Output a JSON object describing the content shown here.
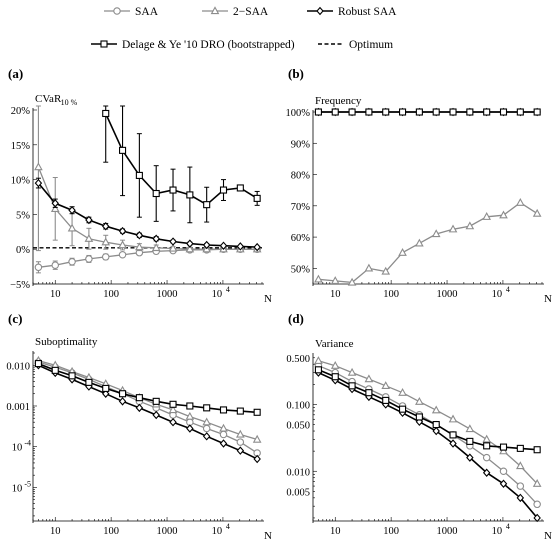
{
  "legend": [
    {
      "name": "SAA",
      "marker": "circle",
      "color": "#8c8c8c"
    },
    {
      "name": "2−SAA",
      "marker": "triangle",
      "color": "#8c8c8c"
    },
    {
      "name": "Robust SAA",
      "marker": "diamond",
      "color": "#000000"
    },
    {
      "name": "Delage & Ye '10 DRO (bootstrapped)",
      "marker": "square",
      "color": "#000000"
    },
    {
      "name": "Optimum",
      "marker": "dashed",
      "color": "#000000"
    }
  ],
  "chart_data": [
    {
      "panel": "(a)",
      "type": "line",
      "ylabel": "CVaR",
      "ylabel_sub": "10 %",
      "xlabel": "N",
      "xscale": "log",
      "xlim": [
        4,
        50000
      ],
      "ylim": [
        -5,
        20
      ],
      "yticks": [
        -5,
        0,
        5,
        10,
        15,
        20
      ],
      "ytick_labels": [
        "−5%",
        "0%",
        "5%",
        "10%",
        "15%",
        "20%"
      ],
      "xticks": [
        10,
        100,
        1000,
        10000
      ],
      "xtick_labels": [
        "10",
        "100",
        "1000",
        "10^4"
      ],
      "x": [
        5,
        10,
        20,
        40,
        80,
        160,
        320,
        640,
        1280,
        2560,
        5120,
        10240,
        20480,
        40960
      ],
      "optimum": 0.2,
      "series": [
        {
          "name": "SAA",
          "values": [
            -2.6,
            -2.3,
            -1.8,
            -1.4,
            -1.1,
            -0.8,
            -0.5,
            -0.3,
            -0.2,
            -0.1,
            -0.1,
            0.0,
            0.0,
            0.0
          ],
          "err": [
            0.8,
            0.6,
            0.5,
            0.5,
            0.4,
            0.3,
            0.3,
            0.2,
            0.2,
            0.2,
            0.1,
            0.1,
            0.1,
            0.1
          ]
        },
        {
          "name": "2−SAA",
          "values": [
            11.8,
            5.8,
            3.0,
            1.5,
            1.0,
            0.6,
            0.3,
            0.2,
            0.1,
            0.0,
            0.0,
            0.0,
            0.0,
            0.0
          ],
          "err": [
            12,
            4.5,
            2.5,
            1.5,
            1.0,
            0.7,
            0.5,
            0.4,
            0.3,
            0.2,
            0.2,
            0.1,
            0.1,
            0.1
          ]
        },
        {
          "name": "Robust SAA",
          "values": [
            9.5,
            6.6,
            5.6,
            4.2,
            3.3,
            2.6,
            2.0,
            1.5,
            1.1,
            0.8,
            0.6,
            0.5,
            0.4,
            0.3
          ],
          "err": [
            0.7,
            0.6,
            0.5,
            0.4,
            0.4,
            0.3,
            0.3,
            0.3,
            0.2,
            0.2,
            0.2,
            0.1,
            0.1,
            0.1
          ]
        },
        {
          "name": "Delage & Ye '10 DRO (bootstrapped)",
          "values": [
            null,
            null,
            null,
            null,
            19.5,
            14.2,
            10.6,
            8.0,
            8.5,
            7.8,
            6.4,
            8.5,
            8.8,
            7.3
          ],
          "err": [
            null,
            null,
            null,
            null,
            7.0,
            6.5,
            6.0,
            4.0,
            3.0,
            4.0,
            2.5,
            1.5,
            0.4,
            1.0
          ]
        }
      ]
    },
    {
      "panel": "(b)",
      "type": "line",
      "ylabel": "Frequency",
      "xlabel": "N",
      "xscale": "log",
      "xlim": [
        4,
        50000
      ],
      "ylim": [
        45,
        100
      ],
      "yticks": [
        50,
        60,
        70,
        80,
        90,
        100
      ],
      "ytick_labels": [
        "50%",
        "60%",
        "70%",
        "80%",
        "90%",
        "100%"
      ],
      "xticks": [
        10,
        100,
        1000,
        10000
      ],
      "xtick_labels": [
        "10",
        "100",
        "1000",
        "10^4"
      ],
      "x": [
        5,
        10,
        20,
        40,
        80,
        160,
        320,
        640,
        1280,
        2560,
        5120,
        10240,
        20480,
        40960
      ],
      "series": [
        {
          "name": "2−SAA",
          "values": [
            46.5,
            46,
            45.5,
            50,
            49,
            55,
            58,
            61,
            62.5,
            63.5,
            66.5,
            67,
            71,
            67.5
          ]
        },
        {
          "name": "Robust SAA",
          "values": [
            100,
            100,
            100,
            100,
            100,
            100,
            100,
            100,
            100,
            100,
            100,
            100,
            100,
            100
          ]
        },
        {
          "name": "Delage & Ye '10 DRO (bootstrapped)",
          "values": [
            100,
            100,
            100,
            100,
            100,
            100,
            100,
            100,
            100,
            100,
            100,
            100,
            100,
            100
          ]
        }
      ]
    },
    {
      "panel": "(c)",
      "type": "line",
      "ylabel": "Suboptimality",
      "xlabel": "N",
      "xscale": "log",
      "yscale": "log",
      "xlim": [
        4,
        50000
      ],
      "ylim": [
        1.5e-06,
        0.02
      ],
      "yticks": [
        1e-05,
        0.0001,
        0.001,
        0.01
      ],
      "ytick_labels": [
        "10^-5",
        "10^-4",
        "0.001",
        "0.010"
      ],
      "xticks": [
        10,
        100,
        1000,
        10000
      ],
      "xtick_labels": [
        "10",
        "100",
        "1000",
        "10^4"
      ],
      "x": [
        5,
        10,
        20,
        40,
        80,
        160,
        320,
        640,
        1280,
        2560,
        5120,
        10240,
        20480,
        40960
      ],
      "series": [
        {
          "name": "SAA",
          "values": [
            0.012,
            0.009,
            0.0065,
            0.0045,
            0.003,
            0.002,
            0.0013,
            0.0009,
            0.0006,
            0.0004,
            0.00028,
            0.0002,
            0.00013,
            7e-05
          ]
        },
        {
          "name": "2−SAA",
          "values": [
            0.013,
            0.01,
            0.007,
            0.005,
            0.0035,
            0.0024,
            0.0016,
            0.0011,
            0.0008,
            0.00055,
            0.0004,
            0.00028,
            0.0002,
            0.00015
          ]
        },
        {
          "name": "Robust SAA",
          "values": [
            0.01,
            0.0065,
            0.0045,
            0.003,
            0.002,
            0.0013,
            0.0009,
            0.0006,
            0.0004,
            0.00028,
            0.00018,
            0.00012,
            8e-05,
            5e-05
          ]
        },
        {
          "name": "Delage & Ye '10 DRO (bootstrapped)",
          "values": [
            0.011,
            0.0075,
            0.0055,
            0.0038,
            0.0027,
            0.002,
            0.0016,
            0.0013,
            0.0011,
            0.001,
            0.0009,
            0.0008,
            0.00075,
            0.0007
          ]
        }
      ]
    },
    {
      "panel": "(d)",
      "type": "line",
      "ylabel": "Variance",
      "xlabel": "N",
      "xscale": "log",
      "yscale": "log",
      "xlim": [
        4,
        50000
      ],
      "ylim": [
        0.0018,
        0.55
      ],
      "yticks": [
        0.005,
        0.01,
        0.05,
        0.1,
        0.5
      ],
      "ytick_labels": [
        "0.005",
        "0.010",
        "0.050",
        "0.100",
        "0.500"
      ],
      "xticks": [
        10,
        100,
        1000,
        10000
      ],
      "xtick_labels": [
        "10",
        "100",
        "1000",
        "10^4"
      ],
      "x": [
        5,
        10,
        20,
        40,
        80,
        160,
        320,
        640,
        1280,
        2560,
        5120,
        10240,
        20480,
        40960
      ],
      "series": [
        {
          "name": "SAA",
          "values": [
            0.38,
            0.3,
            0.22,
            0.17,
            0.13,
            0.095,
            0.07,
            0.05,
            0.035,
            0.024,
            0.016,
            0.01,
            0.006,
            0.0032
          ]
        },
        {
          "name": "2−SAA",
          "values": [
            0.45,
            0.38,
            0.3,
            0.24,
            0.19,
            0.15,
            0.11,
            0.082,
            0.06,
            0.043,
            0.03,
            0.02,
            0.012,
            0.0065
          ]
        },
        {
          "name": "Robust SAA",
          "values": [
            0.3,
            0.23,
            0.17,
            0.13,
            0.1,
            0.075,
            0.055,
            0.04,
            0.026,
            0.016,
            0.0095,
            0.0065,
            0.004,
            0.002
          ]
        },
        {
          "name": "Delage & Ye '10 DRO (bootstrapped)",
          "values": [
            0.33,
            0.26,
            0.19,
            0.15,
            0.115,
            0.085,
            0.065,
            0.05,
            0.035,
            0.028,
            0.024,
            0.023,
            0.022,
            0.021
          ]
        }
      ]
    }
  ]
}
